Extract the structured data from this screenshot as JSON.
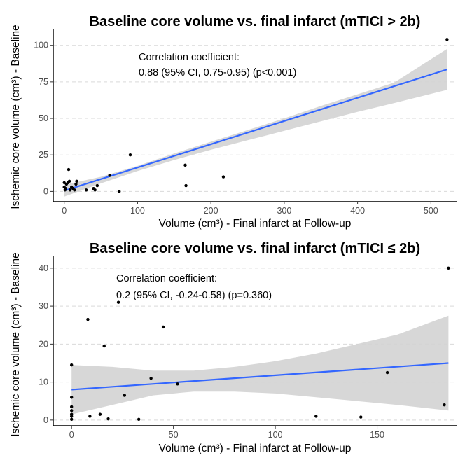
{
  "chart_data": [
    {
      "type": "scatter",
      "title": "Baseline core volume vs. final infarct (mTICI > 2b)",
      "xlabel": "Volume (cm³) - Final infarct at Follow-up",
      "ylabel": "Ischemic core volume (cm³) - Baseline",
      "xlim": [
        -15,
        535
      ],
      "ylim": [
        -7,
        108
      ],
      "xticks": [
        0,
        100,
        200,
        300,
        400,
        500
      ],
      "yticks": [
        0,
        25,
        50,
        75,
        100
      ],
      "annotation": [
        "Correlation coefficient:",
        "0.88 (95% CI, 0.75-0.95) (p<0.001)"
      ],
      "points": {
        "x": [
          0,
          0,
          1,
          2,
          3,
          5,
          6,
          7,
          8,
          10,
          12,
          14,
          16,
          17,
          30,
          40,
          42,
          45,
          62,
          75,
          90,
          165,
          166,
          217,
          522
        ],
        "y": [
          6,
          3,
          1,
          2,
          5,
          6,
          15,
          7,
          1,
          3,
          2,
          1,
          5,
          7,
          1,
          2,
          1,
          4,
          11,
          0,
          25,
          18,
          4,
          10,
          104
        ]
      },
      "fit": {
        "x": [
          0,
          522
        ],
        "y": [
          0.5,
          83.5
        ]
      },
      "band": {
        "x": [
          0,
          50,
          100,
          150,
          200,
          250,
          300,
          350,
          400,
          450,
          522
        ],
        "lower": [
          -3.5,
          5.5,
          14,
          21.5,
          28.5,
          35,
          41.5,
          48,
          54.5,
          60.5,
          69.5
        ],
        "upper": [
          4.5,
          10,
          17.5,
          26,
          34,
          42,
          50,
          58.5,
          66.5,
          74.5,
          97.5
        ]
      },
      "colors": {
        "line": "#3366ff",
        "band": "#d3d3d3",
        "point": "#000000",
        "grid": "#d9d9d9"
      }
    },
    {
      "type": "scatter",
      "title": "Baseline core volume vs. final infarct (mTICI ≤ 2b)",
      "xlabel": "Volume (cm³) - Final infarct at Follow-up",
      "ylabel": "Ischemic core volume (cm³) - Baseline",
      "xlim": [
        -9,
        189
      ],
      "ylim": [
        -1.5,
        42
      ],
      "xticks": [
        0,
        50,
        100,
        150
      ],
      "yticks": [
        0,
        10,
        20,
        30,
        40
      ],
      "annotation": [
        "Correlation coefficient:",
        "0.2 (95% CI, -0.24-0.58) (p=0.360)"
      ],
      "points": {
        "x": [
          0,
          0,
          0,
          0,
          0,
          0,
          0,
          8,
          9,
          14,
          16,
          18,
          23,
          26,
          33,
          39,
          45,
          52,
          120,
          142,
          155,
          183,
          185
        ],
        "y": [
          14.5,
          6,
          3.5,
          2.5,
          1.5,
          1,
          0.2,
          26.5,
          1,
          1.5,
          19.5,
          0.3,
          31,
          6.5,
          0.2,
          11,
          24.5,
          9.5,
          1,
          0.8,
          12.5,
          4,
          40
        ]
      },
      "fit": {
        "x": [
          0,
          185
        ],
        "y": [
          8,
          15
        ]
      },
      "band": {
        "x": [
          0,
          20,
          40,
          60,
          80,
          100,
          120,
          140,
          160,
          185
        ],
        "lower": [
          1.5,
          4,
          6.5,
          7.5,
          7.5,
          7,
          6,
          5,
          4,
          2.5
        ],
        "upper": [
          14.5,
          14,
          13,
          13,
          14,
          15.5,
          17.5,
          20,
          22.5,
          27.5
        ]
      },
      "colors": {
        "line": "#3366ff",
        "band": "#d3d3d3",
        "point": "#000000",
        "grid": "#d9d9d9"
      }
    }
  ]
}
